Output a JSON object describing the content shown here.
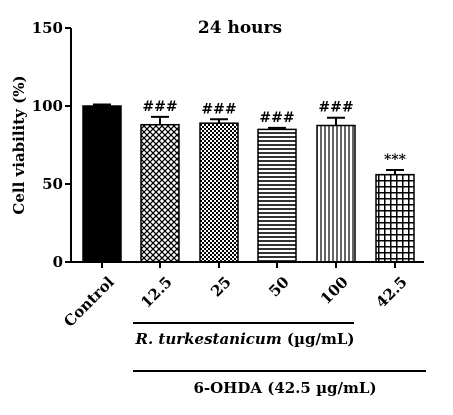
{
  "chart_data": {
    "type": "bar",
    "title": "24 hours",
    "ylabel": "Cell viability (%)",
    "xlabel": "",
    "ylim": [
      0,
      150
    ],
    "yticks": [
      0,
      50,
      100,
      150
    ],
    "categories": [
      "Control",
      "12.5",
      "25",
      "50",
      "100",
      "42.5"
    ],
    "values": [
      100,
      88,
      89,
      85,
      87.5,
      56
    ],
    "errors": [
      1,
      5,
      2.5,
      1,
      5,
      3
    ],
    "annotations": [
      "",
      "###",
      "###",
      "###",
      "###",
      "***"
    ],
    "patterns": [
      "solid",
      "diag-check",
      "check",
      "horizontal",
      "vertical",
      "grid"
    ],
    "group_labels": {
      "extract_italic": "R. turkestanicum",
      "extract_unit": " (µg/mL)",
      "toxin": "6-OHDA (42.5 µg/mL)"
    },
    "colors": {
      "bar_fill": "#000000",
      "axis": "#000000",
      "background": "#ffffff"
    }
  }
}
